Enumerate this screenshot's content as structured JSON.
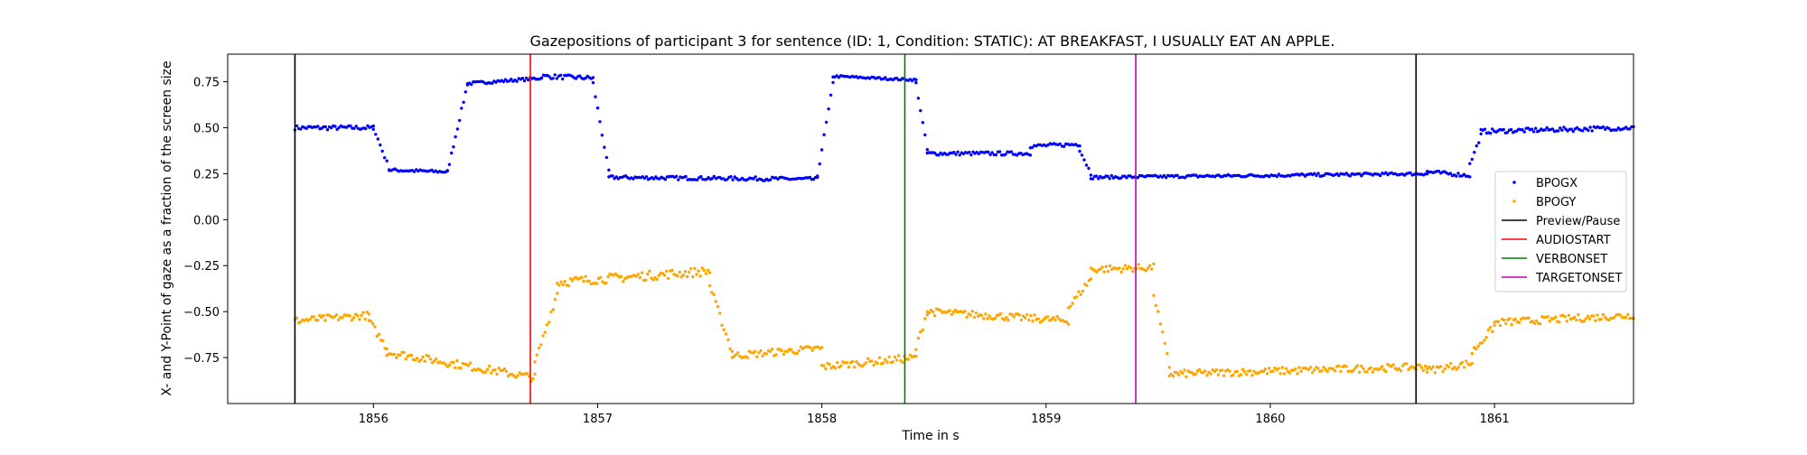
{
  "chart_data": {
    "type": "scatter",
    "title": "Gazepositions of participant 3 for sentence (ID: 1, Condition: STATIC):   AT BREAKFAST, I USUALLY EAT AN APPLE.",
    "xlabel": "Time in s",
    "ylabel": "X- and Y-Point of gaze as a fraction of the screen size",
    "xlim": [
      1855.35,
      1861.62
    ],
    "ylim": [
      -1.0,
      0.9
    ],
    "xticks": [
      1856,
      1857,
      1858,
      1859,
      1860,
      1861
    ],
    "yticks": [
      0.75,
      0.5,
      0.25,
      0.0,
      -0.25,
      -0.5,
      -0.75
    ],
    "ytick_labels": [
      "0.75",
      "0.50",
      "0.25",
      "0.00",
      "−0.25",
      "−0.50",
      "−0.75"
    ],
    "legend_position": "center-right",
    "series": [
      {
        "name": "BPOGX",
        "color": "#0000ff",
        "marker": "point",
        "segments": [
          {
            "t": [
              1855.65,
              1856.0
            ],
            "v": [
              0.5,
              0.5
            ],
            "noise": 0.012
          },
          {
            "t": [
              1856.0,
              1856.07
            ],
            "v": [
              0.5,
              0.28
            ],
            "noise": 0.01
          },
          {
            "t": [
              1856.07,
              1856.33
            ],
            "v": [
              0.27,
              0.26
            ],
            "noise": 0.008
          },
          {
            "t": [
              1856.33,
              1856.42
            ],
            "v": [
              0.26,
              0.74
            ],
            "noise": 0.01
          },
          {
            "t": [
              1856.42,
              1856.75
            ],
            "v": [
              0.74,
              0.77
            ],
            "noise": 0.008
          },
          {
            "t": [
              1856.75,
              1856.98
            ],
            "v": [
              0.78,
              0.77
            ],
            "noise": 0.012
          },
          {
            "t": [
              1856.98,
              1857.05
            ],
            "v": [
              0.74,
              0.26
            ],
            "noise": 0.01
          },
          {
            "t": [
              1857.05,
              1857.98
            ],
            "v": [
              0.23,
              0.22
            ],
            "noise": 0.01
          },
          {
            "t": [
              1857.98,
              1858.05
            ],
            "v": [
              0.24,
              0.74
            ],
            "noise": 0.01
          },
          {
            "t": [
              1858.05,
              1858.42
            ],
            "v": [
              0.78,
              0.76
            ],
            "noise": 0.006
          },
          {
            "t": [
              1858.42,
              1858.47
            ],
            "v": [
              0.74,
              0.38
            ],
            "noise": 0.01
          },
          {
            "t": [
              1858.47,
              1858.93
            ],
            "v": [
              0.36,
              0.36
            ],
            "noise": 0.01
          },
          {
            "t": [
              1858.93,
              1859.15
            ],
            "v": [
              0.4,
              0.41
            ],
            "noise": 0.01
          },
          {
            "t": [
              1859.15,
              1859.2
            ],
            "v": [
              0.38,
              0.25
            ],
            "noise": 0.01
          },
          {
            "t": [
              1859.2,
              1860.7
            ],
            "v": [
              0.23,
              0.25
            ],
            "noise": 0.008
          },
          {
            "t": [
              1860.7,
              1860.89
            ],
            "v": [
              0.26,
              0.24
            ],
            "noise": 0.01
          },
          {
            "t": [
              1860.89,
              1860.94
            ],
            "v": [
              0.3,
              0.46
            ],
            "noise": 0.01
          },
          {
            "t": [
              1860.94,
              1861.62
            ],
            "v": [
              0.48,
              0.5
            ],
            "noise": 0.012
          }
        ]
      },
      {
        "name": "BPOGY",
        "color": "#ffa500",
        "marker": "point",
        "segments": [
          {
            "t": [
              1855.65,
              1855.98
            ],
            "v": [
              -0.55,
              -0.52
            ],
            "noise": 0.02
          },
          {
            "t": [
              1855.98,
              1856.06
            ],
            "v": [
              -0.55,
              -0.7
            ],
            "noise": 0.02
          },
          {
            "t": [
              1856.06,
              1856.72
            ],
            "v": [
              -0.72,
              -0.86
            ],
            "noise": 0.022
          },
          {
            "t": [
              1856.72,
              1856.82
            ],
            "v": [
              -0.78,
              -0.4
            ],
            "noise": 0.02
          },
          {
            "t": [
              1856.82,
              1857.5
            ],
            "v": [
              -0.34,
              -0.28
            ],
            "noise": 0.025
          },
          {
            "t": [
              1857.5,
              1857.6
            ],
            "v": [
              -0.36,
              -0.72
            ],
            "noise": 0.02
          },
          {
            "t": [
              1857.6,
              1858.0
            ],
            "v": [
              -0.74,
              -0.7
            ],
            "noise": 0.02
          },
          {
            "t": [
              1858.0,
              1858.42
            ],
            "v": [
              -0.8,
              -0.75
            ],
            "noise": 0.02
          },
          {
            "t": [
              1858.42,
              1858.47
            ],
            "v": [
              -0.7,
              -0.5
            ],
            "noise": 0.02
          },
          {
            "t": [
              1858.47,
              1859.1
            ],
            "v": [
              -0.5,
              -0.55
            ],
            "noise": 0.02
          },
          {
            "t": [
              1859.1,
              1859.2
            ],
            "v": [
              -0.48,
              -0.32
            ],
            "noise": 0.02
          },
          {
            "t": [
              1859.2,
              1859.48
            ],
            "v": [
              -0.27,
              -0.26
            ],
            "noise": 0.02
          },
          {
            "t": [
              1859.48,
              1859.55
            ],
            "v": [
              -0.4,
              -0.8
            ],
            "noise": 0.02
          },
          {
            "t": [
              1859.55,
              1860.7
            ],
            "v": [
              -0.84,
              -0.8
            ],
            "noise": 0.02
          },
          {
            "t": [
              1860.7,
              1860.9
            ],
            "v": [
              -0.82,
              -0.78
            ],
            "noise": 0.02
          },
          {
            "t": [
              1860.9,
              1861.0
            ],
            "v": [
              -0.72,
              -0.58
            ],
            "noise": 0.02
          },
          {
            "t": [
              1861.0,
              1861.62
            ],
            "v": [
              -0.56,
              -0.52
            ],
            "noise": 0.02
          }
        ]
      }
    ],
    "vlines": [
      {
        "name": "Preview/Pause",
        "color": "#000000",
        "x": [
          1855.65,
          1860.65
        ]
      },
      {
        "name": "AUDIOSTART",
        "color": "#ff0000",
        "x": [
          1856.7
        ]
      },
      {
        "name": "VERBONSET",
        "color": "#008000",
        "x": [
          1858.37
        ]
      },
      {
        "name": "TARGETONSET",
        "color": "#bf00bf",
        "x": [
          1859.4
        ]
      }
    ],
    "legend": [
      "BPOGX",
      "BPOGY",
      "Preview/Pause",
      "AUDIOSTART",
      "VERBONSET",
      "TARGETONSET"
    ]
  }
}
